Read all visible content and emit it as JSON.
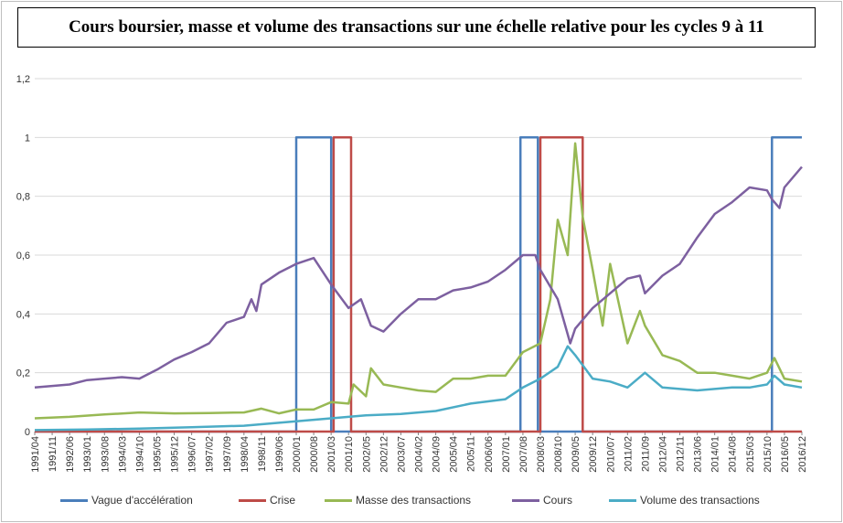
{
  "chart_data": {
    "type": "line",
    "title": "Cours boursier, masse et volume des transactions sur une échelle relative pour les cycles 9 à 11",
    "xlabel": "",
    "ylabel": "",
    "ylim": [
      0,
      1.2
    ],
    "yticks": [
      "0",
      "0,2",
      "0,4",
      "0,6",
      "0,8",
      "1",
      "1,2"
    ],
    "grid": true,
    "legend_position": "bottom",
    "x_start": "1991/04",
    "x_end": "2016/12",
    "x_tick_labels": [
      "1991/04",
      "1991/11",
      "1992/06",
      "1993/01",
      "1993/08",
      "1994/03",
      "1994/10",
      "1995/05",
      "1995/12",
      "1996/07",
      "1997/02",
      "1997/09",
      "1998/04",
      "1998/11",
      "1999/06",
      "2000/01",
      "2000/08",
      "2001/03",
      "2001/10",
      "2002/05",
      "2002/12",
      "2003/07",
      "2004/02",
      "2004/09",
      "2005/04",
      "2005/11",
      "2006/06",
      "2007/01",
      "2007/08",
      "2008/03",
      "2008/10",
      "2009/05",
      "2009/12",
      "2010/07",
      "2011/02",
      "2011/09",
      "2012/04",
      "2012/11",
      "2013/06",
      "2014/01",
      "2014/08",
      "2015/03",
      "2015/10",
      "2016/05",
      "2016/12"
    ],
    "series": [
      {
        "name": "Vague d'accélération",
        "color": "#4a7ebb",
        "points": [
          [
            "1991/04",
            0
          ],
          [
            "2000/01",
            0
          ],
          [
            "2000/01",
            1
          ],
          [
            "2001/03",
            1
          ],
          [
            "2001/03",
            0
          ],
          [
            "2007/07",
            0
          ],
          [
            "2007/07",
            1
          ],
          [
            "2008/02",
            1
          ],
          [
            "2008/02",
            0
          ],
          [
            "2015/12",
            0
          ],
          [
            "2015/12",
            1
          ],
          [
            "2016/12",
            1
          ]
        ]
      },
      {
        "name": "Crise",
        "color": "#be4b48",
        "points": [
          [
            "1991/04",
            0
          ],
          [
            "2001/04",
            0
          ],
          [
            "2001/04",
            1
          ],
          [
            "2001/11",
            1
          ],
          [
            "2001/11",
            0
          ],
          [
            "2008/03",
            0
          ],
          [
            "2008/03",
            1
          ],
          [
            "2009/08",
            1
          ],
          [
            "2009/08",
            0
          ],
          [
            "2016/12",
            0
          ]
        ]
      },
      {
        "name": "Masse des transactions",
        "color": "#98b954",
        "points": [
          [
            "1991/04",
            0.045
          ],
          [
            "1992/06",
            0.05
          ],
          [
            "1993/08",
            0.058
          ],
          [
            "1994/10",
            0.065
          ],
          [
            "1995/12",
            0.062
          ],
          [
            "1997/02",
            0.063
          ],
          [
            "1998/04",
            0.065
          ],
          [
            "1998/11",
            0.078
          ],
          [
            "1999/06",
            0.062
          ],
          [
            "2000/01",
            0.075
          ],
          [
            "2000/08",
            0.075
          ],
          [
            "2001/03",
            0.1
          ],
          [
            "2001/10",
            0.095
          ],
          [
            "2001/12",
            0.16
          ],
          [
            "2002/05",
            0.12
          ],
          [
            "2002/07",
            0.215
          ],
          [
            "2002/12",
            0.16
          ],
          [
            "2003/07",
            0.15
          ],
          [
            "2004/02",
            0.14
          ],
          [
            "2004/09",
            0.135
          ],
          [
            "2005/04",
            0.18
          ],
          [
            "2005/11",
            0.18
          ],
          [
            "2006/06",
            0.19
          ],
          [
            "2007/01",
            0.19
          ],
          [
            "2007/08",
            0.27
          ],
          [
            "2008/03",
            0.3
          ],
          [
            "2008/07",
            0.45
          ],
          [
            "2008/10",
            0.72
          ],
          [
            "2009/02",
            0.6
          ],
          [
            "2009/05",
            0.98
          ],
          [
            "2009/08",
            0.73
          ],
          [
            "2009/12",
            0.55
          ],
          [
            "2010/04",
            0.36
          ],
          [
            "2010/07",
            0.57
          ],
          [
            "2011/02",
            0.3
          ],
          [
            "2011/07",
            0.41
          ],
          [
            "2011/09",
            0.36
          ],
          [
            "2012/04",
            0.26
          ],
          [
            "2012/11",
            0.24
          ],
          [
            "2013/06",
            0.2
          ],
          [
            "2014/01",
            0.2
          ],
          [
            "2014/08",
            0.19
          ],
          [
            "2015/03",
            0.18
          ],
          [
            "2015/10",
            0.2
          ],
          [
            "2016/01",
            0.25
          ],
          [
            "2016/05",
            0.18
          ],
          [
            "2016/12",
            0.17
          ]
        ]
      },
      {
        "name": "Cours",
        "color": "#7d60a0",
        "points": [
          [
            "1991/04",
            0.15
          ],
          [
            "1992/06",
            0.16
          ],
          [
            "1993/01",
            0.175
          ],
          [
            "1993/08",
            0.18
          ],
          [
            "1994/03",
            0.185
          ],
          [
            "1994/10",
            0.18
          ],
          [
            "1995/05",
            0.21
          ],
          [
            "1995/12",
            0.245
          ],
          [
            "1996/07",
            0.27
          ],
          [
            "1997/02",
            0.3
          ],
          [
            "1997/09",
            0.37
          ],
          [
            "1998/04",
            0.39
          ],
          [
            "1998/07",
            0.45
          ],
          [
            "1998/09",
            0.41
          ],
          [
            "1998/11",
            0.5
          ],
          [
            "1999/06",
            0.54
          ],
          [
            "2000/01",
            0.57
          ],
          [
            "2000/08",
            0.59
          ],
          [
            "2001/03",
            0.5
          ],
          [
            "2001/10",
            0.42
          ],
          [
            "2002/03",
            0.45
          ],
          [
            "2002/07",
            0.36
          ],
          [
            "2002/12",
            0.34
          ],
          [
            "2003/07",
            0.4
          ],
          [
            "2004/02",
            0.45
          ],
          [
            "2004/09",
            0.45
          ],
          [
            "2005/04",
            0.48
          ],
          [
            "2005/11",
            0.49
          ],
          [
            "2006/06",
            0.51
          ],
          [
            "2007/01",
            0.55
          ],
          [
            "2007/08",
            0.6
          ],
          [
            "2008/01",
            0.6
          ],
          [
            "2008/03",
            0.55
          ],
          [
            "2008/10",
            0.45
          ],
          [
            "2009/03",
            0.3
          ],
          [
            "2009/05",
            0.35
          ],
          [
            "2009/12",
            0.42
          ],
          [
            "2010/07",
            0.47
          ],
          [
            "2011/02",
            0.52
          ],
          [
            "2011/07",
            0.53
          ],
          [
            "2011/09",
            0.47
          ],
          [
            "2012/04",
            0.53
          ],
          [
            "2012/11",
            0.57
          ],
          [
            "2013/06",
            0.66
          ],
          [
            "2014/01",
            0.74
          ],
          [
            "2014/08",
            0.78
          ],
          [
            "2015/03",
            0.83
          ],
          [
            "2015/10",
            0.82
          ],
          [
            "2015/12",
            0.79
          ],
          [
            "2016/03",
            0.76
          ],
          [
            "2016/05",
            0.83
          ],
          [
            "2016/12",
            0.9
          ]
        ]
      },
      {
        "name": "Volume des transactions",
        "color": "#4bacc6",
        "points": [
          [
            "1991/04",
            0.005
          ],
          [
            "1993/01",
            0.007
          ],
          [
            "1994/10",
            0.01
          ],
          [
            "1996/07",
            0.015
          ],
          [
            "1998/04",
            0.02
          ],
          [
            "1999/06",
            0.03
          ],
          [
            "2000/08",
            0.04
          ],
          [
            "2001/10",
            0.05
          ],
          [
            "2002/05",
            0.055
          ],
          [
            "2003/07",
            0.06
          ],
          [
            "2004/09",
            0.07
          ],
          [
            "2005/11",
            0.095
          ],
          [
            "2007/01",
            0.11
          ],
          [
            "2007/08",
            0.15
          ],
          [
            "2008/03",
            0.18
          ],
          [
            "2008/10",
            0.22
          ],
          [
            "2009/02",
            0.29
          ],
          [
            "2009/05",
            0.26
          ],
          [
            "2009/12",
            0.18
          ],
          [
            "2010/07",
            0.17
          ],
          [
            "2011/02",
            0.15
          ],
          [
            "2011/09",
            0.2
          ],
          [
            "2012/04",
            0.15
          ],
          [
            "2013/06",
            0.14
          ],
          [
            "2014/08",
            0.15
          ],
          [
            "2015/03",
            0.15
          ],
          [
            "2015/10",
            0.16
          ],
          [
            "2016/01",
            0.19
          ],
          [
            "2016/05",
            0.16
          ],
          [
            "2016/12",
            0.15
          ]
        ]
      }
    ]
  }
}
